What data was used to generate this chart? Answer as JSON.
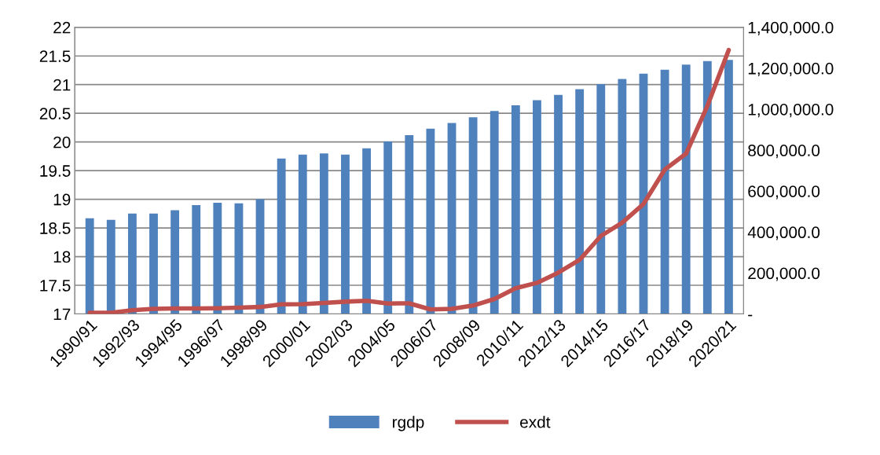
{
  "chart_data": {
    "type": "bar",
    "categories": [
      "1990/91",
      null,
      "1992/93",
      null,
      "1994/95",
      null,
      "1996/97",
      null,
      "1998/99",
      null,
      "2000/01",
      null,
      "2002/03",
      null,
      "2004/05",
      null,
      "2006/07",
      null,
      "2008/09",
      null,
      "2010/11",
      null,
      "2012/13",
      null,
      "2014/15",
      null,
      "2016/17",
      null,
      "2018/19",
      null,
      "2020/21"
    ],
    "series": [
      {
        "name": "rgdp",
        "color": "#4f81bd",
        "values": [
          18.67,
          18.64,
          18.75,
          18.75,
          18.81,
          18.9,
          18.94,
          18.93,
          19.0,
          19.71,
          19.78,
          19.8,
          19.78,
          19.89,
          20.01,
          20.12,
          20.23,
          20.33,
          20.43,
          20.54,
          20.64,
          20.73,
          20.82,
          20.92,
          21.01,
          21.1,
          21.19,
          21.26,
          21.35,
          21.41,
          21.43
        ]
      },
      {
        "name": "exdt",
        "type": "line",
        "axis": "y2",
        "color": "#c0504d",
        "values": [
          6000,
          6000,
          18000,
          25000,
          27000,
          27000,
          28000,
          31000,
          34000,
          47000,
          48000,
          54000,
          60000,
          64000,
          51000,
          52000,
          22000,
          25000,
          41000,
          73000,
          126000,
          152000,
          202000,
          264000,
          381000,
          446000,
          537000,
          705000,
          783000,
          1016000,
          1289000
        ]
      }
    ],
    "ylim": [
      17,
      22
    ],
    "yticks": [
      17,
      17.5,
      18,
      18.5,
      19,
      19.5,
      20,
      20.5,
      21,
      21.5,
      22
    ],
    "y2lim": [
      0,
      1400000
    ],
    "y2ticks": [
      {
        "value": 0,
        "label": "-"
      },
      {
        "value": 200000,
        "label": "200,000.0"
      },
      {
        "value": 400000,
        "label": "400,000.0"
      },
      {
        "value": 600000,
        "label": "600,000.0"
      },
      {
        "value": 800000,
        "label": "800,000.0"
      },
      {
        "value": 1000000,
        "label": "1,000,000.0"
      },
      {
        "value": 1200000,
        "label": "1,200,000.0"
      },
      {
        "value": 1400000,
        "label": "1,400,000.0"
      }
    ],
    "grid": "y",
    "legend": "bottom",
    "marker": "none",
    "line_style": "solid"
  }
}
